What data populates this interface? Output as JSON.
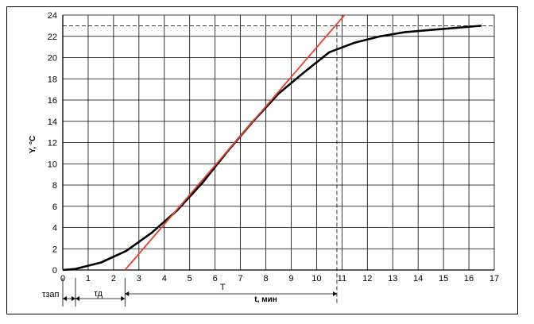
{
  "chart_data": {
    "type": "line",
    "ylabel": "Y, °C",
    "xlabel": "t, мин",
    "xlim": [
      0,
      17
    ],
    "ylim": [
      0,
      24
    ],
    "x_ticks": [
      0,
      1,
      2,
      3,
      4,
      5,
      6,
      7,
      8,
      9,
      10,
      11,
      12,
      13,
      14,
      15,
      16,
      17
    ],
    "y_ticks": [
      0,
      2,
      4,
      6,
      8,
      10,
      12,
      14,
      16,
      18,
      20,
      22,
      24
    ],
    "grid": true,
    "series": [
      {
        "color": "#000000",
        "x": [
          0,
          0.5,
          1.5,
          2.5,
          3.5,
          4.5,
          5.5,
          6.5,
          7.5,
          8.5,
          9.5,
          10.5,
          11.5,
          12.5,
          13.5,
          14.5,
          15.5,
          16.5
        ],
        "y": [
          0,
          0.1,
          0.7,
          1.8,
          3.5,
          5.6,
          8.2,
          11.2,
          14.0,
          16.6,
          18.6,
          20.5,
          21.4,
          22.0,
          22.4,
          22.6,
          22.8,
          23.0
        ]
      },
      {
        "color": "#e8402a",
        "x": [
          2.45,
          11.1
        ],
        "y": [
          0,
          24
        ]
      }
    ],
    "steady_state_y": 23,
    "marker_x": 10.8,
    "annotations": {
      "tau_zap": "τзап",
      "tau_d": "τд",
      "T": "T",
      "t_axis": "t, мин"
    },
    "tau_zap_range": [
      0,
      0.5
    ],
    "tau_d_range": [
      0.5,
      2.45
    ],
    "T_range": [
      2.45,
      10.8
    ]
  }
}
